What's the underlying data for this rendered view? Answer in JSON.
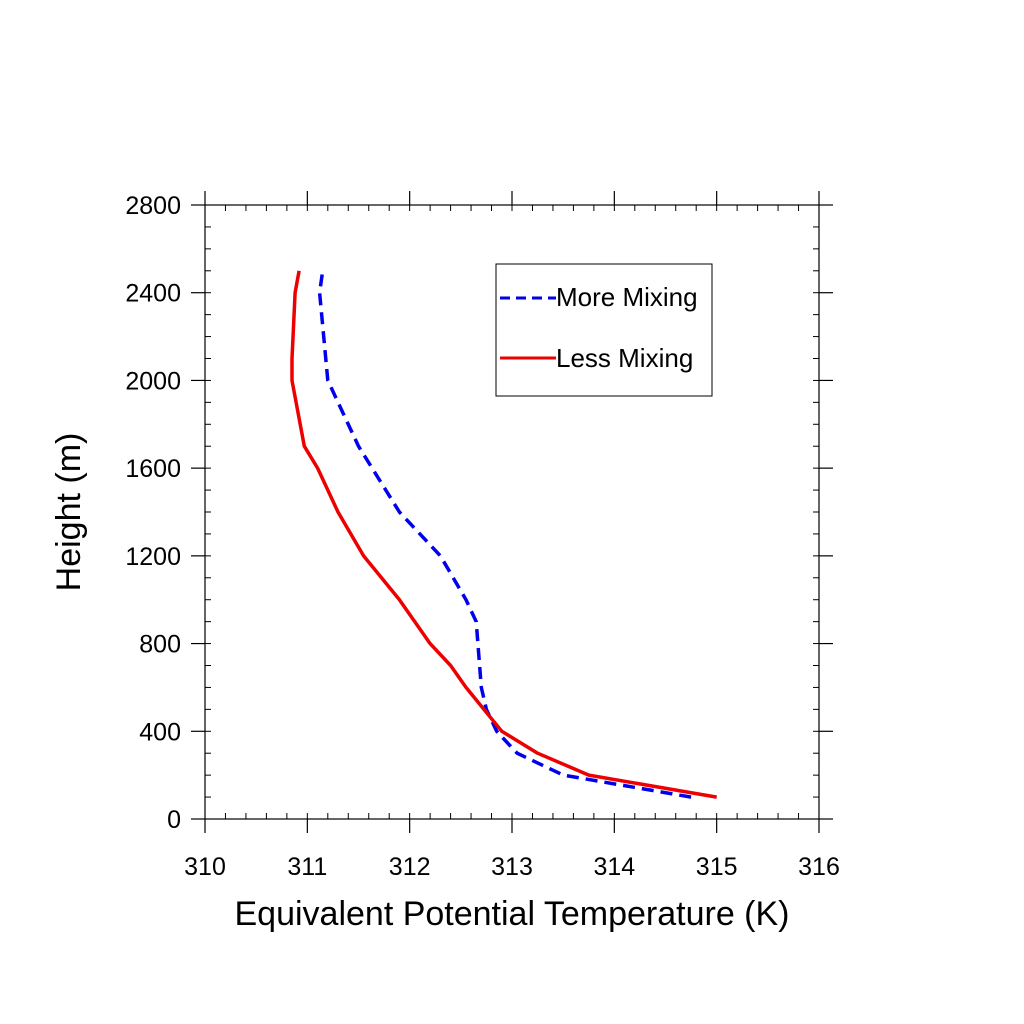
{
  "chart_data": {
    "type": "line",
    "title": "",
    "xlabel": "Equivalent Potential Temperature (K)",
    "ylabel": "Height (m)",
    "xlim": [
      310,
      316
    ],
    "ylim": [
      0,
      2800
    ],
    "xticks": [
      310,
      311,
      312,
      313,
      314,
      315,
      316
    ],
    "yticks": [
      0,
      400,
      800,
      1200,
      1600,
      2000,
      2400,
      2800
    ],
    "grid": false,
    "legend": "top-right",
    "series": [
      {
        "name": "More Mixing",
        "color": "#0000ee",
        "style": "dashed",
        "x": [
          314.75,
          313.5,
          313.05,
          312.85,
          312.75,
          312.7,
          312.65,
          312.55,
          312.3,
          311.9,
          311.5,
          311.2,
          311.12,
          311.15
        ],
        "y": [
          100,
          200,
          300,
          400,
          500,
          600,
          900,
          1000,
          1200,
          1400,
          1700,
          2000,
          2400,
          2500
        ]
      },
      {
        "name": "Less Mixing",
        "color": "#ee0000",
        "style": "solid",
        "x": [
          315.0,
          313.75,
          313.25,
          312.9,
          312.55,
          312.4,
          312.2,
          311.9,
          311.55,
          311.3,
          311.1,
          310.97,
          310.85,
          310.85,
          310.88,
          310.92
        ],
        "y": [
          100,
          200,
          300,
          400,
          600,
          700,
          800,
          1000,
          1200,
          1400,
          1600,
          1700,
          2000,
          2100,
          2400,
          2500
        ]
      }
    ]
  }
}
